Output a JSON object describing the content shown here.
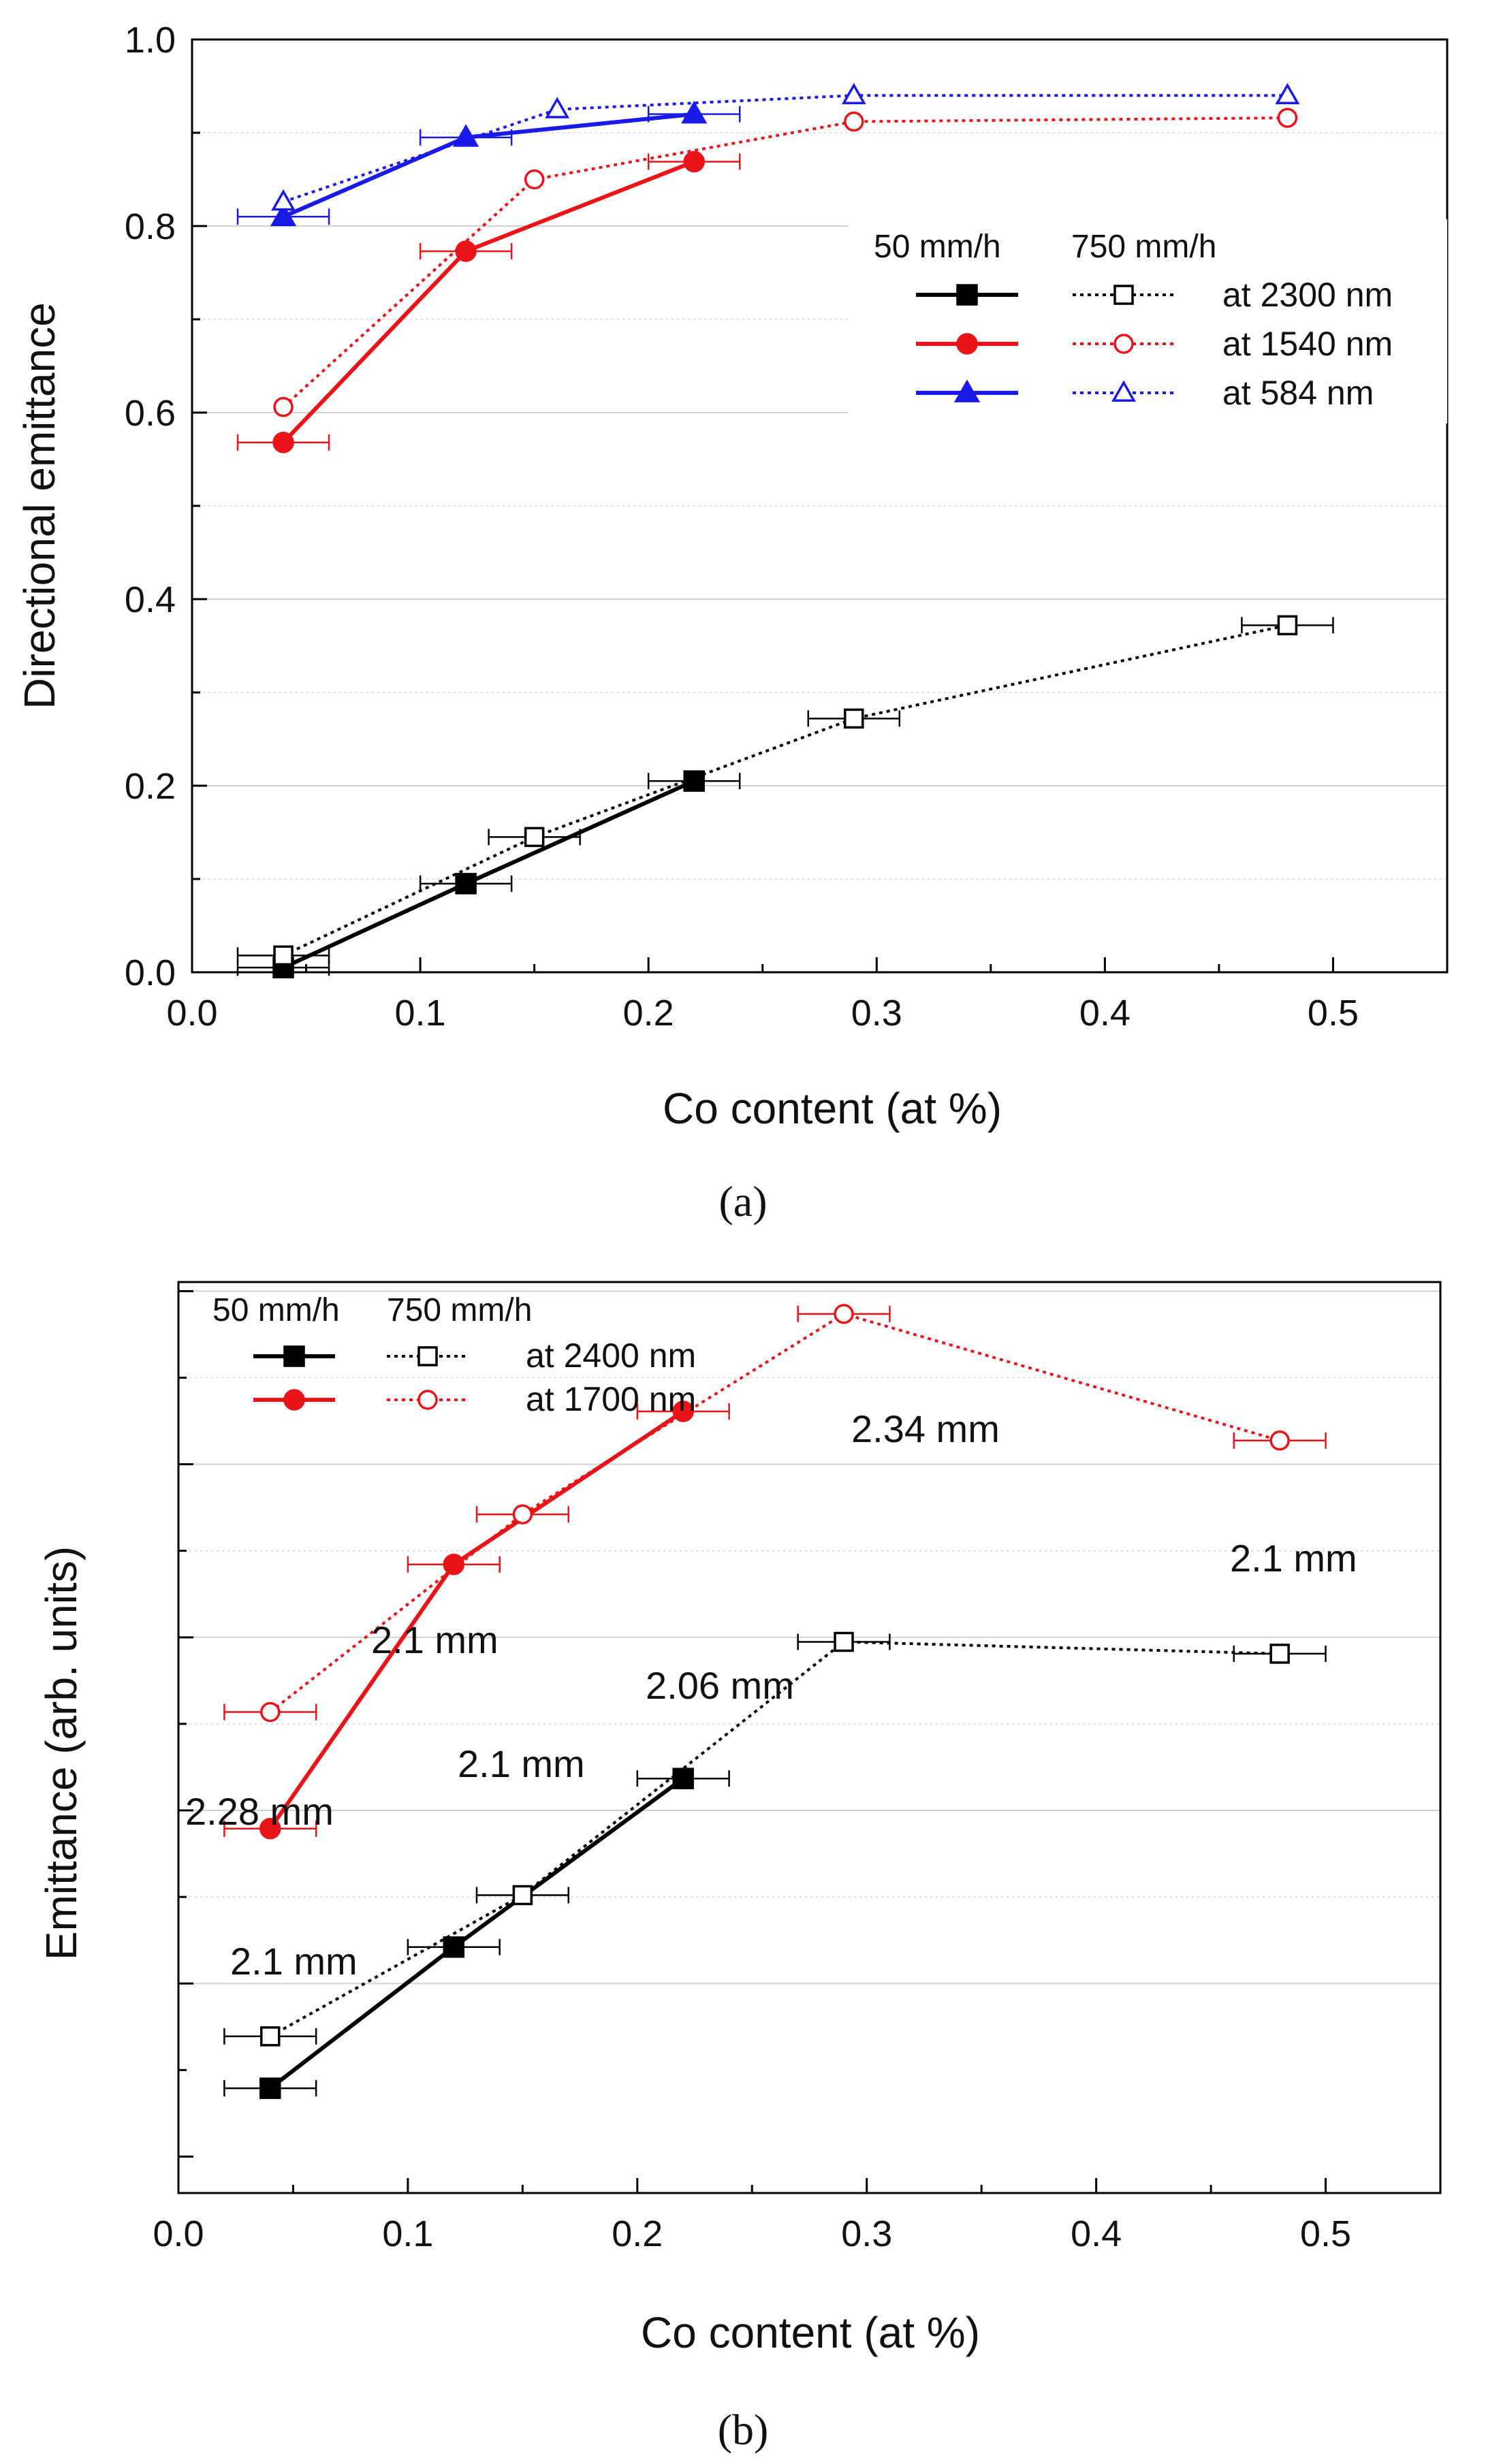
{
  "colors": {
    "black": "#000000",
    "red": "#e8141a",
    "blue": "#1a1ae6",
    "grid": "#d2d2d2",
    "white": "#ffffff"
  },
  "chart_data": [
    {
      "type": "line",
      "panel_label": "(a)",
      "xlabel": "Co content (at %)",
      "ylabel": "Directional emittance",
      "xlim": [
        0.0,
        0.55
      ],
      "ylim": [
        0.0,
        1.0
      ],
      "xticks": [
        "0.0",
        "0.1",
        "0.2",
        "0.3",
        "0.4",
        "0.5"
      ],
      "yticks": [
        "0.0",
        "0.2",
        "0.4",
        "0.6",
        "0.8",
        "1.0"
      ],
      "grid": true,
      "legend_position": "right",
      "legend_headers": [
        "50 mm/h",
        "750 mm/h"
      ],
      "series": [
        {
          "name": "at 2300 nm",
          "rate": "50 mm/h",
          "color": "black",
          "marker": "square",
          "filled": true,
          "dash": "solid",
          "x": [
            0.04,
            0.12,
            0.22
          ],
          "y": [
            0.005,
            0.095,
            0.205
          ],
          "xerr": 0.02
        },
        {
          "name": "at 2300 nm",
          "rate": "750 mm/h",
          "color": "black",
          "marker": "square",
          "filled": false,
          "dash": "dotted",
          "x": [
            0.04,
            0.15,
            0.29,
            0.48
          ],
          "y": [
            0.018,
            0.145,
            0.272,
            0.372
          ],
          "xerr": 0.02
        },
        {
          "name": "at 1540 nm",
          "rate": "50 mm/h",
          "color": "red",
          "marker": "circle",
          "filled": true,
          "dash": "solid",
          "x": [
            0.04,
            0.12,
            0.22
          ],
          "y": [
            0.568,
            0.773,
            0.869
          ],
          "xerr": 0.02
        },
        {
          "name": "at 1540 nm",
          "rate": "750 mm/h",
          "color": "red",
          "marker": "circle",
          "filled": false,
          "dash": "dotted",
          "x": [
            0.04,
            0.15,
            0.29,
            0.48
          ],
          "y": [
            0.606,
            0.85,
            0.912,
            0.916
          ],
          "xerr": null
        },
        {
          "name": "at 584 nm",
          "rate": "50 mm/h",
          "color": "blue",
          "marker": "triangle",
          "filled": true,
          "dash": "solid",
          "x": [
            0.04,
            0.12,
            0.22
          ],
          "y": [
            0.81,
            0.895,
            0.92
          ],
          "xerr": 0.02
        },
        {
          "name": "at 584 nm",
          "rate": "750 mm/h",
          "color": "blue",
          "marker": "triangle",
          "filled": false,
          "dash": "dotted",
          "x": [
            0.04,
            0.16,
            0.29,
            0.48
          ],
          "y": [
            0.826,
            0.925,
            0.94,
            0.94
          ],
          "xerr": null
        }
      ],
      "legend": [
        {
          "label": "at 2300 nm",
          "color": "black",
          "marker": "square"
        },
        {
          "label": "at 1540 nm",
          "color": "red",
          "marker": "circle"
        },
        {
          "label": "at 584 nm",
          "color": "blue",
          "marker": "triangle"
        }
      ]
    },
    {
      "type": "line",
      "panel_label": "(b)",
      "xlabel": "Co content (at %)",
      "ylabel": "Emittance (arb. units)",
      "xlim": [
        0.0,
        0.55
      ],
      "ylim": [
        0.0,
        1.0
      ],
      "xticks": [
        "0.0",
        "0.1",
        "0.2",
        "0.3",
        "0.4",
        "0.5"
      ],
      "yticks": [],
      "grid": true,
      "legend_position": "top-left",
      "legend_headers": [
        "50 mm/h",
        "750 mm/h"
      ],
      "series": [
        {
          "name": "at 2400 nm",
          "rate": "50 mm/h",
          "color": "black",
          "marker": "square",
          "filled": true,
          "dash": "solid",
          "x": [
            0.04,
            0.12,
            0.22
          ],
          "y": [
            0.115,
            0.27,
            0.455
          ],
          "xerr": 0.02
        },
        {
          "name": "at 2400 nm",
          "rate": "750 mm/h",
          "color": "black",
          "marker": "square",
          "filled": false,
          "dash": "dotted",
          "x": [
            0.04,
            0.15,
            0.29,
            0.48
          ],
          "y": [
            0.172,
            0.327,
            0.605,
            0.592
          ],
          "xerr": 0.02
        },
        {
          "name": "at 1700 nm",
          "rate": "50 mm/h",
          "color": "red",
          "marker": "circle",
          "filled": true,
          "dash": "solid",
          "x": [
            0.04,
            0.12,
            0.22
          ],
          "y": [
            0.4,
            0.69,
            0.858
          ],
          "xerr": 0.02
        },
        {
          "name": "at 1700 nm",
          "rate": "750 mm/h",
          "color": "red",
          "marker": "circle",
          "filled": false,
          "dash": "dotted",
          "x": [
            0.04,
            0.15,
            0.29,
            0.48
          ],
          "y": [
            0.528,
            0.745,
            0.965,
            0.826
          ],
          "xerr": 0.02
        }
      ],
      "legend": [
        {
          "label": "at 2400 nm",
          "color": "black",
          "marker": "square"
        },
        {
          "label": "at 1700 nm",
          "color": "red",
          "marker": "circle"
        }
      ],
      "annotations": [
        {
          "text": "2.34 mm",
          "x": 0.29,
          "y": 0.965
        },
        {
          "text": "2.1 mm",
          "x": 0.48,
          "y": 0.826
        },
        {
          "text": "2.1 mm",
          "x": 0.12,
          "y": 0.69
        },
        {
          "text": "2.06 mm",
          "x": 0.22,
          "y": 0.858
        },
        {
          "text": "2.1 mm",
          "x": 0.12,
          "y": 0.69
        },
        {
          "text": "2.28 mm",
          "x": 0.04,
          "y": 0.528
        },
        {
          "text": "2.1 mm",
          "x": 0.04,
          "y": 0.4
        }
      ]
    }
  ]
}
